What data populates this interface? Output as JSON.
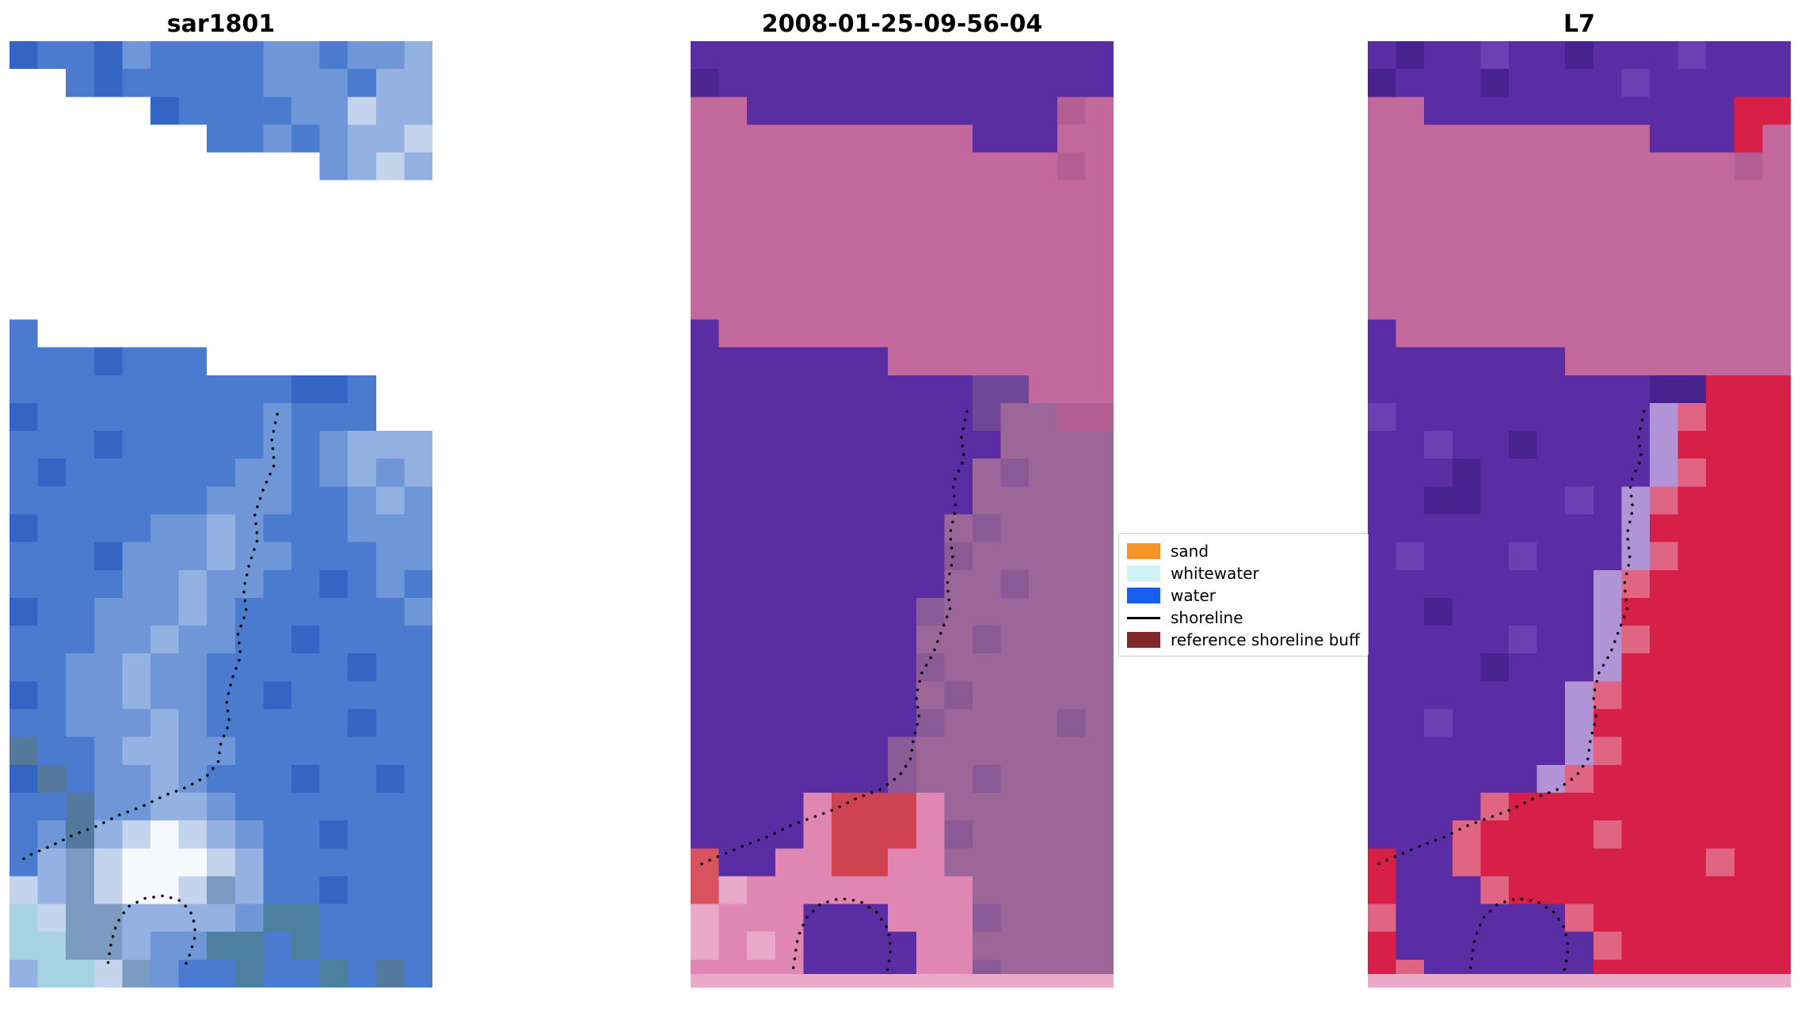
{
  "chart_data": {
    "type": "heatmap",
    "title": "",
    "layout": {
      "axes": "off",
      "grid": "off",
      "legend_position": "center-right-between-panels-2-and-3"
    },
    "shoreline_style": {
      "color": "#000000",
      "width": 3.5,
      "dash": "0.1 11"
    },
    "panels": [
      {
        "title": "sar1801",
        "bottom_strip": null,
        "grid": {
          "cols": 15,
          "rows": 34,
          "palette": {
            "a": "#3465c4",
            "b": "#4b7bce",
            "c": "#6f97d8",
            "d": "#93b2e2",
            "e": "#55799d",
            "f": "#7b9cc0",
            "g": "#c3d4ec",
            "h": "#f7fafc",
            "i": "#a7d2e4",
            "t": "#4f7f9e",
            "k": "#2d55a0",
            "u": "#6b8cb4"
          },
          "rows_data": [
            "abbacbbbbccbccd",
            "..babbbbbcccbdd",
            ".....abbbbccgdd",
            ".......bbcbcddg",
            "...........cdgd",
            "...............",
            "...............",
            "...............",
            "...............",
            "...............",
            "b..............",
            "bbbabbb........",
            "bbbbbbbbbbaab..",
            "abbbbbbbbcbbb..",
            "bbbabbbbbcbcddd",
            "babbbbbbccbcdcd",
            "bbbbbbbcccbbcdc",
            "abbbbccdcbbbccc",
            "bbbacccdccbbbcc",
            "bbbbccdccbbabcb",
            "abbcccdcbbbbbbc",
            "bbbccdccbbabbbb",
            "bbccdccbbbbbabb",
            "abccdccbbabbbbb",
            "bbcccdcbbbbbabb",
            "ebbcddccbbbbbbb",
            "aebccdcbbbabbab",
            "bbeccddcbbbbbbb",
            "bcedghgdcbbabbb",
            "bdfghhhgdbbbbbb",
            "gdfghhgfdbbabbb",
            "igffddddcttbbbb",
            "iiffdccttbtbbbb",
            "diigfcbbtbbtbeb"
          ]
        },
        "shorelines": [
          [
            [
              9.5,
              13.4
            ],
            [
              9.3,
              14.3
            ],
            [
              9.4,
              15.2
            ],
            [
              9.0,
              16.1
            ],
            [
              8.7,
              17.0
            ],
            [
              8.8,
              17.9
            ],
            [
              8.5,
              18.8
            ],
            [
              8.3,
              19.7
            ],
            [
              8.4,
              20.5
            ],
            [
              8.1,
              21.3
            ],
            [
              8.2,
              22.1
            ],
            [
              7.9,
              22.9
            ],
            [
              7.7,
              23.7
            ],
            [
              7.8,
              24.5
            ],
            [
              7.5,
              25.2
            ],
            [
              7.4,
              25.9
            ],
            [
              7.0,
              26.4
            ],
            [
              6.3,
              26.8
            ],
            [
              5.5,
              27.1
            ],
            [
              4.7,
              27.5
            ],
            [
              3.9,
              27.8
            ],
            [
              3.1,
              28.2
            ],
            [
              2.3,
              28.5
            ],
            [
              1.5,
              28.9
            ],
            [
              0.8,
              29.2
            ],
            [
              0.3,
              29.5
            ]
          ],
          [
            [
              3.5,
              33.1
            ],
            [
              3.6,
              32.4
            ],
            [
              3.8,
              31.7
            ],
            [
              4.2,
              31.1
            ],
            [
              4.8,
              30.8
            ],
            [
              5.5,
              30.7
            ],
            [
              6.1,
              30.9
            ],
            [
              6.5,
              31.4
            ],
            [
              6.6,
              32.1
            ],
            [
              6.4,
              32.8
            ],
            [
              6.2,
              33.3
            ]
          ]
        ]
      },
      {
        "title": "2008-01-25-09-56-04",
        "bottom_strip": "#eba9ca",
        "grid": {
          "cols": 15,
          "rows": 34,
          "palette": {
            "P": "#5a2da2",
            "p": "#6a3cae",
            "q": "#4c2590",
            "M": "#c2689c",
            "m": "#b35f93",
            "n": "#9d6699",
            "o": "#8a5a96",
            "d": "#6e4796",
            "r": "#cf4252",
            "R": "#d9535f",
            "K": "#df86b2",
            "k": "#e9a9c8"
          },
          "rows_data": [
            "PPPPPPPPPPPPPPP",
            "qPPPPPPPPPPPPPP",
            "MMPPPPPPPPPPPmM",
            "MMMMMMMMMMPPPMM",
            "MMMMMMMMMMMMMmM",
            "MMMMMMMMMMMMMMM",
            "MMMMMMMMMMMMMMM",
            "MMMMMMMMMMMMMMM",
            "MMMMMMMMMMMMMMM",
            "MMMMMMMMMMMMMMM",
            "PMMMMMMMMMMMMMM",
            "PPPPPPPMMMMMMMM",
            "PPPPPPPPPPddMMM",
            "PPPPPPPPPPdnnmm",
            "PPPPPPPPPPPnnnn",
            "PPPPPPPPPPnonnn",
            "PPPPPPPPPPnnnnn",
            "PPPPPPPPPnonnnn",
            "PPPPPPPPPonnnnn",
            "PPPPPPPPPnnonnn",
            "PPPPPPPPonnnnnn",
            "PPPPPPPPnnonnnn",
            "PPPPPPPPonnnnnn",
            "PPPPPPPPnonnnnn",
            "PPPPPPPPonnnnon",
            "PPPPPPPonnnnnnn",
            "PPPPPPPonnonnnn",
            "PPPPKrrrKnnnnnn",
            "PPPPKrrrKonnnnn",
            "RPPKKrrKKnnnnnn",
            "RkKKKKKKKKnnnnn",
            "kKKKPPPKKKonnnn",
            "kKkKPPPPKKnnnnn",
            "KKKKPPPPKKonnnn"
          ]
        },
        "shorelines": [
          [
            [
              9.8,
              13.3
            ],
            [
              9.6,
              14.2
            ],
            [
              9.7,
              15.0
            ],
            [
              9.3,
              15.9
            ],
            [
              9.4,
              16.8
            ],
            [
              9.2,
              17.7
            ],
            [
              9.3,
              18.6
            ],
            [
              9.1,
              19.5
            ],
            [
              9.2,
              20.4
            ],
            [
              8.9,
              21.2
            ],
            [
              8.6,
              22.0
            ],
            [
              8.2,
              22.7
            ],
            [
              8.0,
              23.5
            ],
            [
              8.1,
              24.3
            ],
            [
              7.9,
              25.1
            ],
            [
              7.8,
              25.8
            ],
            [
              7.4,
              26.4
            ],
            [
              6.7,
              26.9
            ],
            [
              5.9,
              27.2
            ],
            [
              5.1,
              27.6
            ],
            [
              4.3,
              27.9
            ],
            [
              3.5,
              28.2
            ],
            [
              2.7,
              28.6
            ],
            [
              1.9,
              28.9
            ],
            [
              1.2,
              29.2
            ],
            [
              0.5,
              29.5
            ],
            [
              0.15,
              29.7
            ]
          ],
          [
            [
              3.6,
              33.6
            ],
            [
              3.7,
              32.9
            ],
            [
              3.8,
              32.2
            ],
            [
              4.1,
              31.5
            ],
            [
              4.6,
              31.0
            ],
            [
              5.3,
              30.8
            ],
            [
              6.0,
              30.9
            ],
            [
              6.6,
              31.3
            ],
            [
              7.0,
              31.9
            ],
            [
              7.1,
              32.6
            ],
            [
              7.0,
              33.3
            ],
            [
              6.9,
              33.6
            ]
          ]
        ]
      },
      {
        "title": "L7",
        "bottom_strip": "#eba9ca",
        "grid": {
          "cols": 15,
          "rows": 34,
          "palette": {
            "P": "#5b2da5",
            "p": "#6c40b2",
            "q": "#48228e",
            "v": "#7d55c2",
            "M": "#c2689c",
            "m": "#b35f93",
            "R": "#d62048",
            "x": "#e06585",
            "w": "#b92c50",
            "l": "#b194d6",
            "K": "#df86b2"
          },
          "rows_data": [
            "PqPPpPPqPPPpPPP",
            "qPPPqPPPPpPPPPP",
            "MMPPPPPPPPPPPRR",
            "MMMMMMMMMMPPPRM",
            "MMMMMMMMMMMMMmM",
            "MMMMMMMMMMMMMMM",
            "MMMMMMMMMMMMMMM",
            "MMMMMMMMMMMMMMM",
            "MMMMMMMMMMMMMMM",
            "MMMMMMMMMMMMMMM",
            "PMMMMMMMMMMMMMM",
            "PPPPPPPMMMMMMMM",
            "PPPPPPPPPPqqRRR",
            "pPPPPPPPPPlxRRR",
            "PPpPPqPPPPlRRRR",
            "PPPqPPPPPPlxRRR",
            "PPqqPPPpPlxRRRR",
            "PPPPPPPPPlRRRRR",
            "PpPPPpPPPlxRRRR",
            "PPPPPPPPlxRRRRR",
            "PPqPPPPPlRRRRRR",
            "PPPPPpPPlxRRRRR",
            "PPPPqPPPlRRRRRR",
            "PPPPPPPlxRRRRRR",
            "PPpPPPPlRRRRRRR",
            "PPPPPPPlxRRRRRR",
            "PPPPPPlxRRRRRRR",
            "PPPPxRRRRRRRRRR",
            "PPPxRRRRxRRRRRR",
            "RPPxRRRRRRRRxRR",
            "RPPPxRRRRRRRRRR",
            "xPPPPPPxRRRRRRR",
            "RPPPPPPPxRRRRRR",
            "RxPPPPPPRRRRRRR"
          ]
        },
        "shorelines": [
          [
            [
              9.8,
              13.3
            ],
            [
              9.6,
              14.2
            ],
            [
              9.7,
              15.0
            ],
            [
              9.3,
              15.9
            ],
            [
              9.4,
              16.8
            ],
            [
              9.2,
              17.7
            ],
            [
              9.3,
              18.6
            ],
            [
              9.1,
              19.5
            ],
            [
              9.2,
              20.4
            ],
            [
              8.9,
              21.2
            ],
            [
              8.6,
              22.0
            ],
            [
              8.2,
              22.7
            ],
            [
              8.0,
              23.5
            ],
            [
              8.1,
              24.3
            ],
            [
              7.9,
              25.1
            ],
            [
              7.8,
              25.8
            ],
            [
              7.4,
              26.4
            ],
            [
              6.7,
              26.9
            ],
            [
              5.9,
              27.2
            ],
            [
              5.1,
              27.6
            ],
            [
              4.3,
              27.9
            ],
            [
              3.5,
              28.2
            ],
            [
              2.7,
              28.6
            ],
            [
              1.9,
              28.9
            ],
            [
              1.2,
              29.2
            ],
            [
              0.5,
              29.5
            ],
            [
              0.15,
              29.7
            ]
          ],
          [
            [
              3.6,
              33.6
            ],
            [
              3.7,
              32.9
            ],
            [
              3.8,
              32.2
            ],
            [
              4.1,
              31.5
            ],
            [
              4.6,
              31.0
            ],
            [
              5.3,
              30.8
            ],
            [
              6.0,
              30.9
            ],
            [
              6.6,
              31.3
            ],
            [
              7.0,
              31.9
            ],
            [
              7.1,
              32.6
            ],
            [
              7.0,
              33.3
            ],
            [
              6.9,
              33.6
            ]
          ]
        ]
      }
    ],
    "legend": {
      "items": [
        {
          "label": "sand",
          "swatch": "#f79429",
          "type": "patch"
        },
        {
          "label": "whitewater",
          "swatch": "#cdf3f5",
          "type": "patch"
        },
        {
          "label": "water",
          "swatch": "#1a5ef0",
          "type": "patch"
        },
        {
          "label": "shoreline",
          "swatch": "#000000",
          "type": "line"
        },
        {
          "label": "reference shoreline buff",
          "swatch": "#7f2629",
          "type": "patch"
        }
      ]
    }
  }
}
